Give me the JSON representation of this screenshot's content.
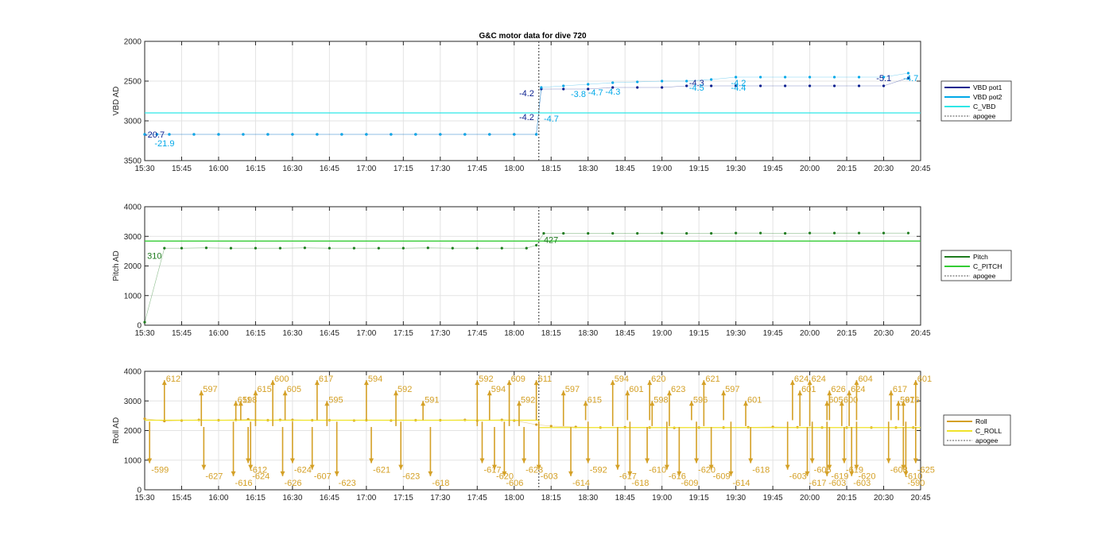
{
  "title": "G&C motor data for dive 720",
  "time_ticks": [
    "15:30",
    "15:45",
    "16:00",
    "16:15",
    "16:30",
    "16:45",
    "17:00",
    "17:15",
    "17:30",
    "17:45",
    "18:00",
    "18:15",
    "18:30",
    "18:45",
    "19:00",
    "19:15",
    "19:30",
    "19:45",
    "20:00",
    "20:15",
    "20:30",
    "20:45"
  ],
  "chart_data": [
    {
      "type": "line",
      "id": "vbd",
      "ylabel": "VBD AD",
      "xlim": [
        "15:30",
        "20:45"
      ],
      "ylim": [
        2000,
        3500
      ],
      "y_reversed": true,
      "yticks": [
        "2000",
        "2500",
        "3000",
        "3500"
      ],
      "grid": true,
      "legend_position": "right",
      "apogee_x": "18:10",
      "series": [
        {
          "name": "VBD pot1",
          "color": "#0a1f8f",
          "x": [
            "15:30",
            "15:35",
            "15:40",
            "15:50",
            "16:00",
            "16:10",
            "16:20",
            "16:30",
            "16:40",
            "16:50",
            "17:00",
            "17:10",
            "17:20",
            "17:30",
            "17:40",
            "17:50",
            "18:00",
            "18:09",
            "18:11",
            "18:20",
            "18:30",
            "18:40",
            "18:50",
            "19:00",
            "19:10",
            "19:20",
            "19:30",
            "19:40",
            "19:50",
            "20:00",
            "20:10",
            "20:20",
            "20:30",
            "20:40"
          ],
          "y": [
            3170,
            3170,
            3170,
            3170,
            3170,
            3170,
            3170,
            3170,
            3170,
            3170,
            3170,
            3170,
            3170,
            3170,
            3170,
            3170,
            3170,
            3170,
            2600,
            2600,
            2600,
            2580,
            2580,
            2580,
            2560,
            2560,
            2560,
            2560,
            2560,
            2560,
            2560,
            2560,
            2560,
            2460
          ]
        },
        {
          "name": "VBD pot2",
          "color": "#00a8e8",
          "x": [
            "15:30",
            "15:35",
            "15:40",
            "15:50",
            "16:00",
            "16:10",
            "16:20",
            "16:30",
            "16:40",
            "16:50",
            "17:00",
            "17:10",
            "17:20",
            "17:30",
            "17:40",
            "17:50",
            "18:00",
            "18:09",
            "18:11",
            "18:20",
            "18:30",
            "18:40",
            "18:50",
            "19:00",
            "19:10",
            "19:20",
            "19:30",
            "19:40",
            "19:50",
            "20:00",
            "20:10",
            "20:20",
            "20:30",
            "20:40"
          ],
          "y": [
            3170,
            3170,
            3170,
            3170,
            3170,
            3170,
            3170,
            3170,
            3170,
            3170,
            3170,
            3170,
            3170,
            3170,
            3170,
            3170,
            3170,
            3170,
            2580,
            2560,
            2540,
            2520,
            2510,
            2500,
            2500,
            2480,
            2450,
            2450,
            2450,
            2450,
            2450,
            2450,
            2450,
            2400
          ]
        },
        {
          "name": "C_VBD",
          "color": "#2ee6e6",
          "x": [
            "15:30",
            "20:45"
          ],
          "y": [
            2900,
            2900
          ]
        },
        {
          "name": "apogee",
          "color": "#555555",
          "dashed": true
        }
      ],
      "annotations": [
        {
          "text": "-20.7",
          "x": "15:30",
          "y": 3170,
          "color": "#0a1f8f"
        },
        {
          "text": "-21.9",
          "x": "15:34",
          "y": 3280,
          "color": "#00a8e8"
        },
        {
          "text": "-4.2",
          "x": "18:02",
          "y": 2950,
          "color": "#0a1f8f"
        },
        {
          "text": "-4.7",
          "x": "18:12",
          "y": 2970,
          "color": "#00a8e8"
        },
        {
          "text": "-4.2",
          "x": "18:02",
          "y": 2650,
          "color": "#0a1f8f"
        },
        {
          "text": "-3.8",
          "x": "18:23",
          "y": 2660,
          "color": "#00a8e8"
        },
        {
          "text": "-4.7",
          "x": "18:30",
          "y": 2640,
          "color": "#00a8e8"
        },
        {
          "text": "-4.3",
          "x": "18:37",
          "y": 2630,
          "color": "#00a8e8"
        },
        {
          "text": "-4.3",
          "x": "19:11",
          "y": 2520,
          "color": "#0a1f8f"
        },
        {
          "text": "-4.5",
          "x": "19:11",
          "y": 2580,
          "color": "#00a8e8"
        },
        {
          "text": "-4.4",
          "x": "19:28",
          "y": 2580,
          "color": "#00a8e8"
        },
        {
          "text": "-4.2",
          "x": "19:28",
          "y": 2520,
          "color": "#00a8e8"
        },
        {
          "text": "-5.1",
          "x": "20:27",
          "y": 2460,
          "color": "#0a1f8f"
        },
        {
          "text": "-4.7",
          "x": "20:38",
          "y": 2460,
          "color": "#00a8e8"
        }
      ]
    },
    {
      "type": "line",
      "id": "pitch",
      "ylabel": "Pitch AD",
      "xlim": [
        "15:30",
        "20:45"
      ],
      "ylim": [
        0,
        4000
      ],
      "yticks": [
        "0",
        "1000",
        "2000",
        "3000",
        "4000"
      ],
      "grid": true,
      "legend_position": "right",
      "apogee_x": "18:10",
      "series": [
        {
          "name": "Pitch",
          "color": "#1e7b1e",
          "x": [
            "15:30",
            "15:38",
            "15:45",
            "15:55",
            "16:05",
            "16:15",
            "16:25",
            "16:35",
            "16:45",
            "16:55",
            "17:05",
            "17:15",
            "17:25",
            "17:35",
            "17:45",
            "17:55",
            "18:05",
            "18:09",
            "18:12",
            "18:20",
            "18:30",
            "18:40",
            "18:50",
            "19:00",
            "19:10",
            "19:20",
            "19:30",
            "19:40",
            "19:50",
            "20:00",
            "20:10",
            "20:20",
            "20:30",
            "20:40"
          ],
          "y": [
            100,
            2600,
            2600,
            2610,
            2600,
            2600,
            2600,
            2610,
            2600,
            2600,
            2600,
            2600,
            2610,
            2600,
            2600,
            2600,
            2600,
            2700,
            3100,
            3100,
            3100,
            3100,
            3100,
            3110,
            3100,
            3100,
            3110,
            3110,
            3100,
            3110,
            3110,
            3110,
            3110,
            3110
          ]
        },
        {
          "name": "C_PITCH",
          "color": "#33cc33",
          "x": [
            "15:30",
            "18:10",
            "18:10",
            "20:45"
          ],
          "y": [
            2840,
            2840,
            2840,
            2840
          ]
        },
        {
          "name": "apogee",
          "color": "#555555",
          "dashed": true
        }
      ],
      "annotations": [
        {
          "text": "310",
          "x": "15:31",
          "y": 2350,
          "color": "#1e7b1e"
        },
        {
          "text": "427",
          "x": "18:12",
          "y": 2880,
          "color": "#1e7b1e"
        }
      ]
    },
    {
      "type": "line",
      "id": "roll",
      "ylabel": "Roll AD",
      "xlim": [
        "15:30",
        "20:45"
      ],
      "ylim": [
        0,
        4000
      ],
      "yticks": [
        "0",
        "1000",
        "2000",
        "3000",
        "4000"
      ],
      "grid": true,
      "legend_position": "right",
      "apogee_x": "18:10",
      "series": [
        {
          "name": "Roll",
          "color": "#d4a026",
          "x": [
            "15:30",
            "15:38",
            "15:45",
            "15:52",
            "16:00",
            "16:07",
            "16:12",
            "16:20",
            "16:25",
            "16:30",
            "16:38",
            "16:45",
            "16:55",
            "17:00",
            "17:10",
            "17:20",
            "17:30",
            "17:40",
            "17:45",
            "17:55",
            "18:00",
            "18:09",
            "18:15",
            "18:25",
            "18:35",
            "18:45",
            "18:55",
            "19:05",
            "19:15",
            "19:25",
            "19:35",
            "19:45",
            "19:55",
            "20:05",
            "20:15",
            "20:25",
            "20:35",
            "20:42"
          ],
          "y": [
            2400,
            2320,
            2340,
            2360,
            2350,
            2360,
            2380,
            2350,
            2360,
            2360,
            2350,
            2350,
            2340,
            2350,
            2340,
            2350,
            2350,
            2360,
            2340,
            2360,
            2340,
            2200,
            2150,
            2120,
            2100,
            2110,
            2100,
            2090,
            2100,
            2100,
            2110,
            2120,
            2110,
            2100,
            2100,
            2100,
            2100,
            2100
          ]
        },
        {
          "name": "C_ROLL",
          "color": "#f0e32a",
          "x": [
            "15:30",
            "18:10",
            "18:10",
            "20:45"
          ],
          "y": [
            2350,
            2350,
            2100,
            2100
          ]
        },
        {
          "name": "apogee",
          "color": "#555555",
          "dashed": true
        }
      ],
      "up_labels": [
        {
          "text": "612",
          "x": "15:38"
        },
        {
          "text": "597",
          "x": "15:53"
        },
        {
          "text": "598",
          "x": "16:09"
        },
        {
          "text": "600",
          "x": "16:22"
        },
        {
          "text": "605",
          "x": "16:27"
        },
        {
          "text": "595",
          "x": "16:44"
        },
        {
          "text": "594",
          "x": "17:00"
        },
        {
          "text": "592",
          "x": "17:12"
        },
        {
          "text": "591",
          "x": "17:23"
        },
        {
          "text": "592",
          "x": "17:45"
        },
        {
          "text": "594",
          "x": "17:50"
        },
        {
          "text": "592",
          "x": "18:02"
        },
        {
          "text": "611",
          "x": "18:09"
        },
        {
          "text": "597",
          "x": "18:20"
        },
        {
          "text": "615",
          "x": "18:29"
        },
        {
          "text": "594",
          "x": "18:40"
        },
        {
          "text": "601",
          "x": "18:46"
        },
        {
          "text": "598",
          "x": "18:56"
        },
        {
          "text": "620",
          "x": "18:55"
        },
        {
          "text": "623",
          "x": "19:03"
        },
        {
          "text": "596",
          "x": "19:12"
        },
        {
          "text": "621",
          "x": "19:17"
        },
        {
          "text": "597",
          "x": "19:25"
        },
        {
          "text": "601",
          "x": "19:34"
        },
        {
          "text": "624",
          "x": "19:53"
        },
        {
          "text": "601",
          "x": "19:56"
        },
        {
          "text": "605",
          "x": "20:07"
        },
        {
          "text": "624",
          "x": "20:00"
        },
        {
          "text": "626",
          "x": "20:08"
        },
        {
          "text": "600",
          "x": "20:13"
        },
        {
          "text": "604",
          "x": "20:19"
        },
        {
          "text": "624",
          "x": "20:16"
        },
        {
          "text": "597",
          "x": "20:36"
        },
        {
          "text": "601",
          "x": "20:43"
        },
        {
          "text": "617",
          "x": "20:33"
        },
        {
          "text": "616",
          "x": "20:38"
        },
        {
          "text": "617",
          "x": "16:40"
        },
        {
          "text": "615",
          "x": "16:15"
        },
        {
          "text": "611",
          "x": "16:07"
        },
        {
          "text": "609",
          "x": "17:58"
        }
      ],
      "down_labels": [
        {
          "text": "-599",
          "x": "15:32"
        },
        {
          "text": "-627",
          "x": "15:54"
        },
        {
          "text": "-616",
          "x": "16:06"
        },
        {
          "text": "-612",
          "x": "16:12"
        },
        {
          "text": "-624",
          "x": "16:13"
        },
        {
          "text": "-626",
          "x": "16:26"
        },
        {
          "text": "-624",
          "x": "16:30"
        },
        {
          "text": "-607",
          "x": "16:38"
        },
        {
          "text": "-623",
          "x": "16:48"
        },
        {
          "text": "-621",
          "x": "17:02"
        },
        {
          "text": "-623",
          "x": "17:14"
        },
        {
          "text": "-618",
          "x": "17:26"
        },
        {
          "text": "-617",
          "x": "17:47"
        },
        {
          "text": "-620",
          "x": "17:52"
        },
        {
          "text": "-606",
          "x": "17:56"
        },
        {
          "text": "-623",
          "x": "18:04"
        },
        {
          "text": "-603",
          "x": "18:10"
        },
        {
          "text": "-614",
          "x": "18:23"
        },
        {
          "text": "-592",
          "x": "18:30"
        },
        {
          "text": "-617",
          "x": "18:42"
        },
        {
          "text": "-618",
          "x": "18:47"
        },
        {
          "text": "-610",
          "x": "18:54"
        },
        {
          "text": "-616",
          "x": "19:02"
        },
        {
          "text": "-609",
          "x": "19:07"
        },
        {
          "text": "-620",
          "x": "19:14"
        },
        {
          "text": "-609",
          "x": "19:20"
        },
        {
          "text": "-614",
          "x": "19:28"
        },
        {
          "text": "-618",
          "x": "19:36"
        },
        {
          "text": "-603",
          "x": "19:51"
        },
        {
          "text": "-617",
          "x": "19:59"
        },
        {
          "text": "-605",
          "x": "20:01"
        },
        {
          "text": "-619",
          "x": "20:08"
        },
        {
          "text": "-603",
          "x": "20:07"
        },
        {
          "text": "-619",
          "x": "20:14"
        },
        {
          "text": "-620",
          "x": "20:19"
        },
        {
          "text": "-603",
          "x": "20:17"
        },
        {
          "text": "-608",
          "x": "20:32"
        },
        {
          "text": "-610",
          "x": "20:38"
        },
        {
          "text": "-590",
          "x": "20:39"
        },
        {
          "text": "-625",
          "x": "20:43"
        }
      ]
    }
  ]
}
